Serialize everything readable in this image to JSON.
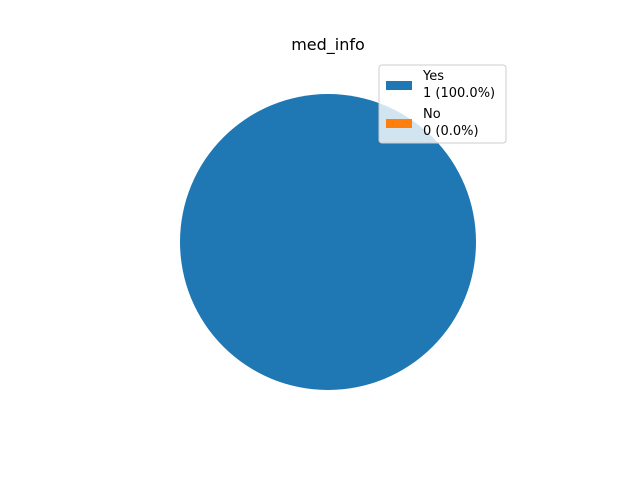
{
  "chart_data": {
    "type": "pie",
    "title": "med_info",
    "legend_position": "top-right",
    "slices": [
      {
        "label": "Yes",
        "value": 1,
        "percent": 100.0,
        "display": "1 (100.0%)",
        "color": "#1f77b4"
      },
      {
        "label": "No",
        "value": 0,
        "percent": 0.0,
        "display": "0 (0.0%)",
        "color": "#ff7f0e"
      }
    ]
  }
}
